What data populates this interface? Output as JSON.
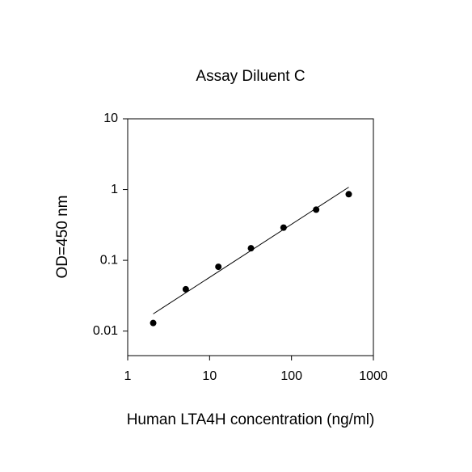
{
  "chart_data": {
    "type": "scatter",
    "title": "Assay Diluent C",
    "x_label": "Human LTA4H concentration (ng/ml)",
    "y_label": "OD=450 nm",
    "x": [
      2.048,
      5.12,
      12.8,
      32,
      80,
      200,
      500
    ],
    "values": [
      0.013,
      0.039,
      0.081,
      0.148,
      0.29,
      0.52,
      0.86
    ],
    "color": "#000000",
    "fit": {
      "x": [
        2.048,
        500
      ],
      "y": [
        0.0175,
        1.08
      ],
      "color": "#000000"
    },
    "xscale": "log",
    "yscale": "log",
    "xlim": [
      1,
      1000
    ],
    "ylim": [
      0.0045,
      10
    ],
    "xticks": [
      1,
      10,
      100,
      1000
    ],
    "yticks": [
      0.01,
      0.1,
      1,
      10
    ]
  }
}
